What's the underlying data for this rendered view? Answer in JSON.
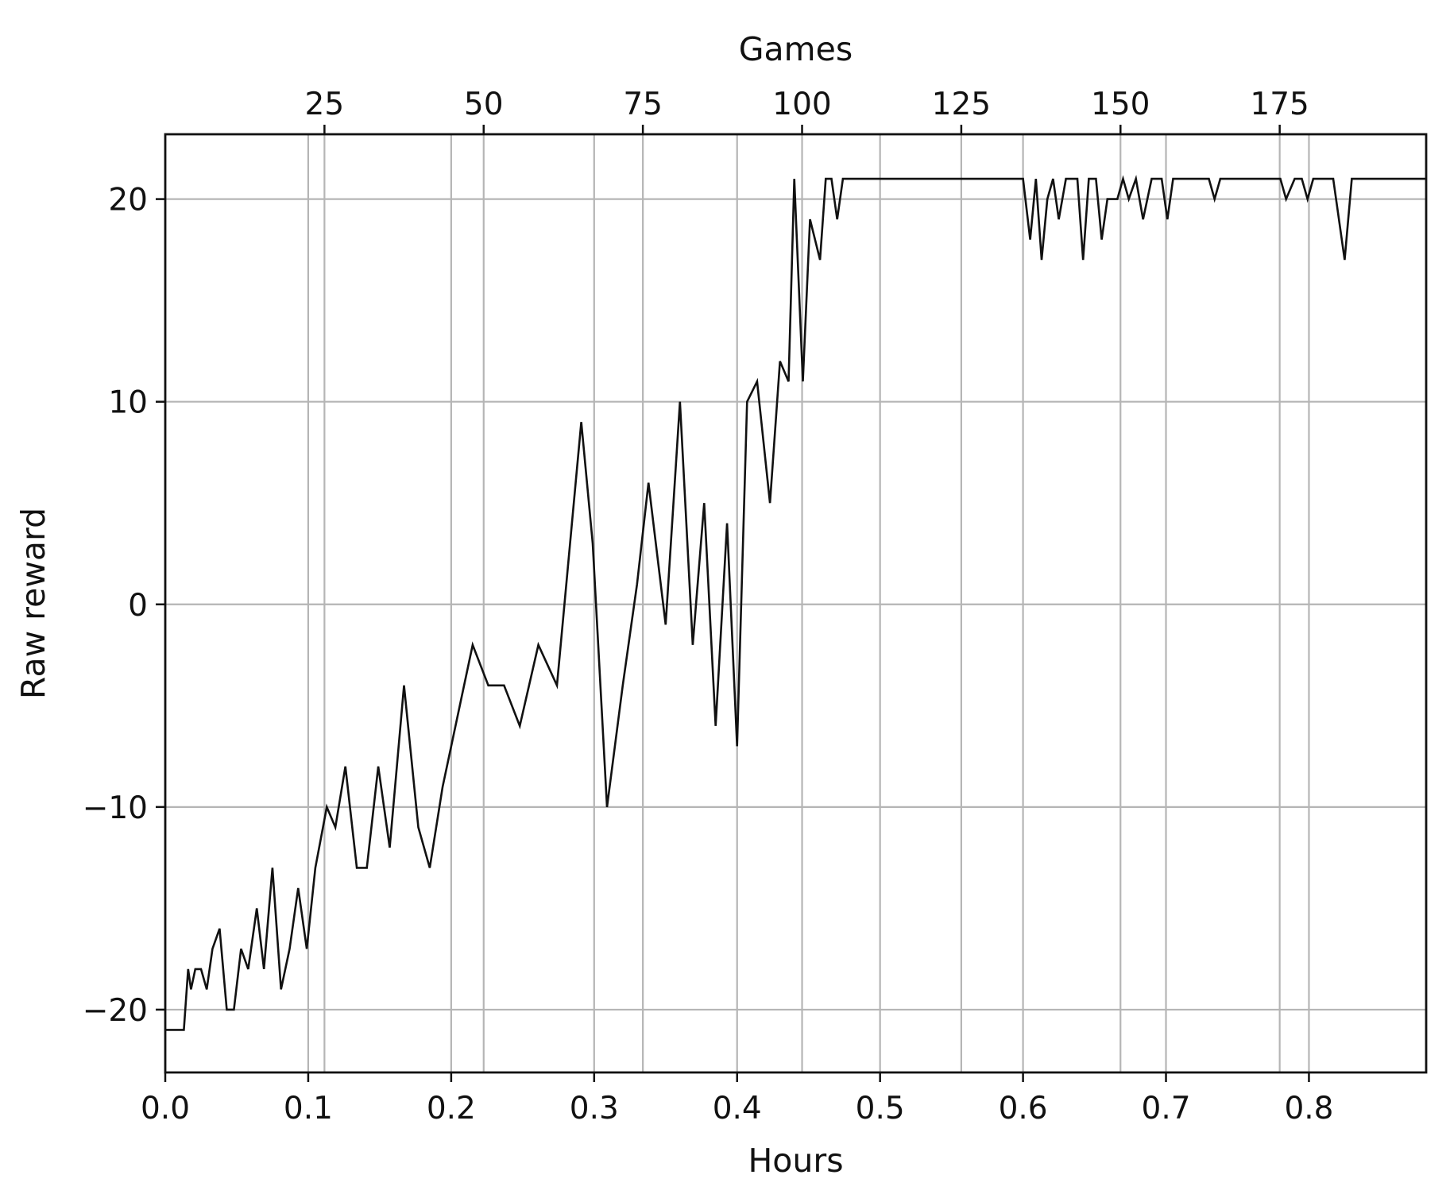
{
  "chart_data": {
    "type": "line",
    "title": "",
    "xlabel": "Hours",
    "ylabel": "Raw reward",
    "top_xlabel": "Games",
    "xlim": [
      0.0,
      0.882
    ],
    "ylim": [
      -23.1,
      23.2
    ],
    "top_xlim": [
      0,
      198
    ],
    "grid": true,
    "legend": "none",
    "line_color": "#111111",
    "grid_color": "#b5b5b5",
    "x_ticks": [
      {
        "value": 0.0,
        "label": "0.0"
      },
      {
        "value": 0.1,
        "label": "0.1"
      },
      {
        "value": 0.2,
        "label": "0.2"
      },
      {
        "value": 0.3,
        "label": "0.3"
      },
      {
        "value": 0.4,
        "label": "0.4"
      },
      {
        "value": 0.5,
        "label": "0.5"
      },
      {
        "value": 0.6,
        "label": "0.6"
      },
      {
        "value": 0.7,
        "label": "0.7"
      },
      {
        "value": 0.8,
        "label": "0.8"
      }
    ],
    "top_x_ticks": [
      {
        "value": 25,
        "label": "25"
      },
      {
        "value": 50,
        "label": "50"
      },
      {
        "value": 75,
        "label": "75"
      },
      {
        "value": 100,
        "label": "100"
      },
      {
        "value": 125,
        "label": "125"
      },
      {
        "value": 150,
        "label": "150"
      },
      {
        "value": 175,
        "label": "175"
      }
    ],
    "y_ticks": [
      {
        "value": -20,
        "label": "−20"
      },
      {
        "value": -10,
        "label": "−10"
      },
      {
        "value": 0,
        "label": "0"
      },
      {
        "value": 10,
        "label": "10"
      },
      {
        "value": 20,
        "label": "20"
      }
    ],
    "series": [
      {
        "x": [
          0.0,
          0.013,
          0.016,
          0.018,
          0.021,
          0.025,
          0.029,
          0.033,
          0.038,
          0.043,
          0.048,
          0.053,
          0.058,
          0.064,
          0.069,
          0.075,
          0.081,
          0.087,
          0.093,
          0.099,
          0.105,
          0.113,
          0.119,
          0.126,
          0.134,
          0.141,
          0.149,
          0.157,
          0.167,
          0.177,
          0.185,
          0.194,
          0.215,
          0.226,
          0.237,
          0.248,
          0.261,
          0.274,
          0.291,
          0.299,
          0.309,
          0.32,
          0.33,
          0.338,
          0.35,
          0.36,
          0.369,
          0.377,
          0.385,
          0.393,
          0.4,
          0.407,
          0.414,
          0.423,
          0.43,
          0.436,
          0.44,
          0.446,
          0.451,
          0.458,
          0.462,
          0.466,
          0.47,
          0.474,
          0.6,
          0.605,
          0.609,
          0.613,
          0.617,
          0.621,
          0.625,
          0.63,
          0.638,
          0.642,
          0.646,
          0.651,
          0.655,
          0.659,
          0.662,
          0.666,
          0.67,
          0.674,
          0.679,
          0.684,
          0.69,
          0.697,
          0.701,
          0.705,
          0.73,
          0.734,
          0.738,
          0.78,
          0.784,
          0.79,
          0.795,
          0.799,
          0.803,
          0.817,
          0.825,
          0.83,
          0.882
        ],
        "y": [
          -21,
          -21,
          -18,
          -19,
          -18,
          -18,
          -19,
          -17,
          -16,
          -20,
          -20,
          -17,
          -18,
          -15,
          -18,
          -13,
          -19,
          -17,
          -14,
          -17,
          -13,
          -10,
          -11,
          -8,
          -13,
          -13,
          -8,
          -12,
          -4,
          -11,
          -13,
          -9,
          -2,
          -4,
          -4,
          -6,
          -2,
          -4,
          9,
          3,
          -10,
          -4,
          1,
          6,
          -1,
          10,
          -2,
          5,
          -6,
          4,
          -7,
          10,
          11,
          5,
          12,
          11,
          21,
          11,
          19,
          17,
          21,
          21,
          19,
          21,
          21,
          18,
          21,
          17,
          20,
          21,
          19,
          21,
          21,
          17,
          21,
          21,
          18,
          20,
          20,
          20,
          21,
          20,
          21,
          19,
          21,
          21,
          19,
          21,
          21,
          20,
          21,
          21,
          20,
          21,
          21,
          20,
          21,
          21,
          17,
          21,
          21
        ]
      }
    ]
  }
}
